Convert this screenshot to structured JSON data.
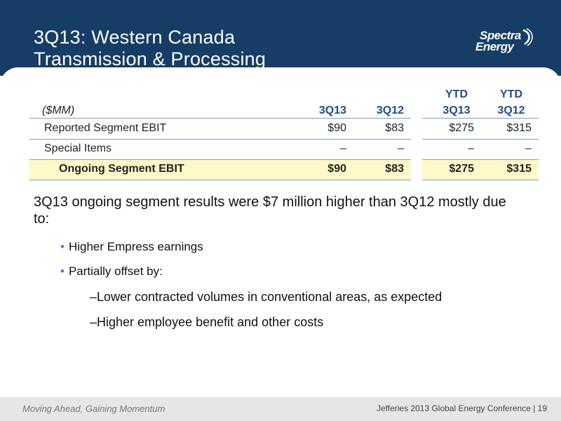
{
  "slide": {
    "title_line1": "3Q13: Western Canada",
    "title_line2": "Transmission & Processing"
  },
  "logo": {
    "line1": "Spectra",
    "line2": "Energy"
  },
  "table": {
    "unit_label": "($MM)",
    "col_3q13": "3Q13",
    "col_3q12": "3Q12",
    "ytd_label_1": "YTD",
    "ytd_label_2": "YTD",
    "col_ytd_3q13": "3Q13",
    "col_ytd_3q12": "3Q12",
    "rows": [
      {
        "label": "Reported Segment EBIT",
        "q13": "$90",
        "q12": "$83",
        "ytd13": "$275",
        "ytd12": "$315"
      },
      {
        "label": "Special Items",
        "q13": "–",
        "q12": "–",
        "ytd13": "–",
        "ytd12": "–"
      },
      {
        "label": "Ongoing Segment EBIT",
        "q13": "$90",
        "q12": "$83",
        "ytd13": "$275",
        "ytd12": "$315"
      }
    ]
  },
  "body": {
    "lead": "3Q13 ongoing segment results were $7 million higher than 3Q12 mostly due to:",
    "bullet1": "Higher Empress earnings",
    "bullet2": "Partially offset by:",
    "sub1": "Lower contracted volumes in conventional areas, as expected",
    "sub2": "Higher employee benefit and other costs",
    "bullet_glyph": "•",
    "dash_glyph": "–"
  },
  "footer": {
    "tagline": "Moving Ahead, Gaining Momentum",
    "conference": "Jefferies 2013 Global Energy Conference | 19"
  },
  "colors": {
    "header_bg": "#163d66",
    "header_accent": "#1f4e8c",
    "highlight_row": "#fff8c8",
    "bullet": "#3c7ec7"
  }
}
